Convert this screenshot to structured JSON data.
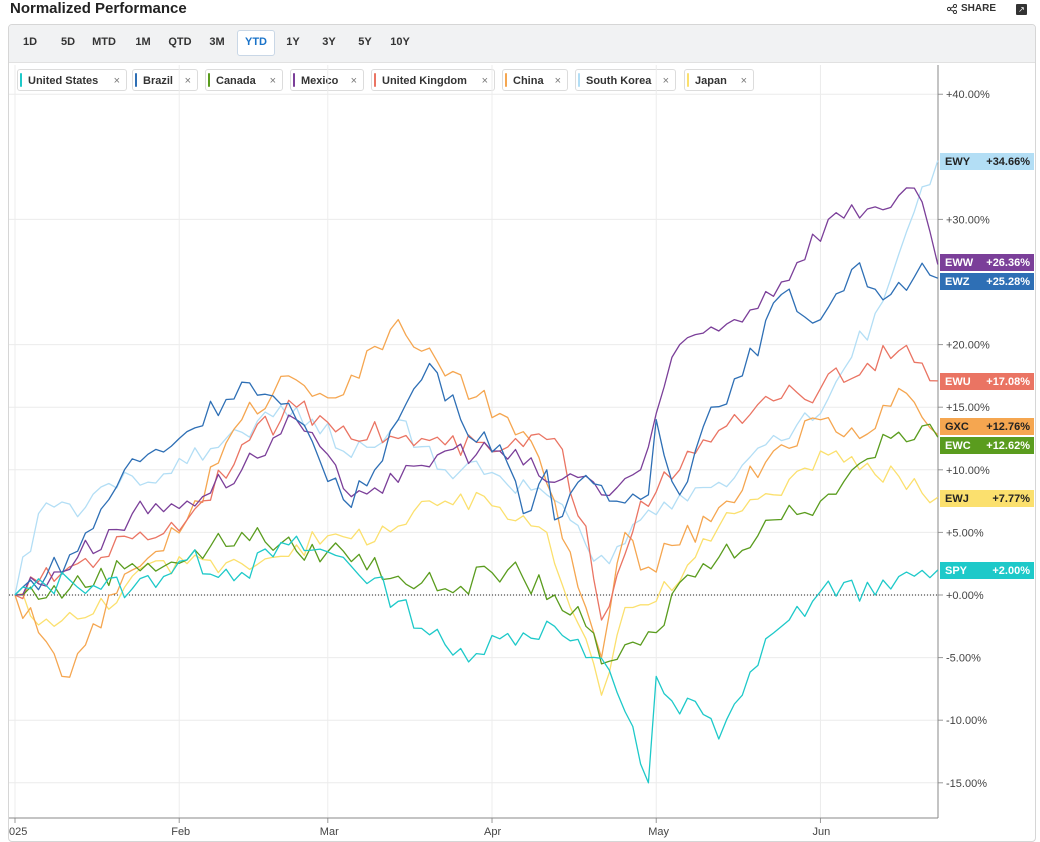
{
  "header": {
    "title": "Normalized Performance",
    "share_label": "SHARE"
  },
  "timeframes": [
    "1D",
    "5D",
    "MTD",
    "1M",
    "QTD",
    "3M",
    "YTD",
    "1Y",
    "3Y",
    "5Y",
    "10Y"
  ],
  "active_timeframe": "YTD",
  "chart_data": {
    "type": "line",
    "x_ticks": [
      "025",
      "Feb",
      "Mar",
      "Apr",
      "May",
      "Jun"
    ],
    "y_ticks": [
      "+40.00%",
      "+30.00%",
      "+20.00%",
      "+15.00%",
      "+10.00%",
      "+5.00%",
      "+0.00%",
      "-5.00%",
      "-10.00%",
      "-15.00%"
    ],
    "ylim": [
      -17.5,
      42.5
    ],
    "days": 119,
    "series": [
      {
        "name": "United States",
        "ticker": "SPY",
        "color": "#1ec9c9",
        "last_label": "+2.00%",
        "anchors": [
          [
            0,
            0
          ],
          [
            7,
            1.2
          ],
          [
            15,
            0.5
          ],
          [
            22,
            2.8
          ],
          [
            29,
            1.8
          ],
          [
            35,
            4.0
          ],
          [
            42,
            3.0
          ],
          [
            49,
            -0.5
          ],
          [
            56,
            -4.8
          ],
          [
            62,
            -3.5
          ],
          [
            69,
            -2.5
          ],
          [
            73,
            -5.0
          ],
          [
            76,
            -6.0
          ],
          [
            79,
            -10.5
          ],
          [
            80,
            -13.5
          ],
          [
            81,
            -15.0
          ],
          [
            82,
            -6.5
          ],
          [
            85,
            -9.5
          ],
          [
            87,
            -8.5
          ],
          [
            90,
            -11.5
          ],
          [
            93,
            -8.0
          ],
          [
            96,
            -3.5
          ],
          [
            99,
            -2.0
          ],
          [
            102,
            -0.5
          ],
          [
            106,
            1.0
          ],
          [
            110,
            0.0
          ],
          [
            115,
            1.5
          ],
          [
            118,
            2.0
          ]
        ]
      },
      {
        "name": "Brazil",
        "ticker": "EWZ",
        "color": "#2e6fb5",
        "last_label": "+25.28%",
        "anchors": [
          [
            0,
            0
          ],
          [
            8,
            3.5
          ],
          [
            14,
            10.0
          ],
          [
            21,
            12.5
          ],
          [
            29,
            17.0
          ],
          [
            36,
            14.0
          ],
          [
            43,
            7.0
          ],
          [
            49,
            14.0
          ],
          [
            53,
            18.5
          ],
          [
            57,
            14.0
          ],
          [
            62,
            12.0
          ],
          [
            65,
            6.5
          ],
          [
            68,
            10.0
          ],
          [
            69,
            6.0
          ],
          [
            72,
            9.0
          ],
          [
            76,
            7.5
          ],
          [
            81,
            8.0
          ],
          [
            82,
            14.0
          ],
          [
            85,
            8.0
          ],
          [
            89,
            15.0
          ],
          [
            93,
            17.5
          ],
          [
            98,
            24.0
          ],
          [
            103,
            22.0
          ],
          [
            107,
            26.0
          ],
          [
            112,
            24.0
          ],
          [
            116,
            26.5
          ],
          [
            118,
            25.3
          ]
        ]
      },
      {
        "name": "Canada",
        "ticker": "EWC",
        "color": "#5a9c1e",
        "last_label": "+12.62%",
        "anchors": [
          [
            0,
            0
          ],
          [
            7,
            0.5
          ],
          [
            15,
            2.5
          ],
          [
            22,
            2.8
          ],
          [
            29,
            5.0
          ],
          [
            36,
            3.5
          ],
          [
            42,
            3.5
          ],
          [
            49,
            1.5
          ],
          [
            55,
            0.5
          ],
          [
            63,
            2.0
          ],
          [
            69,
            0.0
          ],
          [
            73,
            -2.5
          ],
          [
            75,
            -5.5
          ],
          [
            80,
            -4.0
          ],
          [
            82,
            -3.0
          ],
          [
            85,
            1.0
          ],
          [
            90,
            3.0
          ],
          [
            97,
            6.0
          ],
          [
            103,
            7.5
          ],
          [
            108,
            10.5
          ],
          [
            113,
            13.0
          ],
          [
            116,
            13.5
          ],
          [
            118,
            12.6
          ]
        ]
      },
      {
        "name": "Mexico",
        "ticker": "EWW",
        "color": "#7b3f99",
        "last_label": "+26.36%",
        "anchors": [
          [
            0,
            0
          ],
          [
            8,
            3.0
          ],
          [
            15,
            6.5
          ],
          [
            22,
            7.5
          ],
          [
            29,
            10.0
          ],
          [
            36,
            14.0
          ],
          [
            42,
            8.5
          ],
          [
            49,
            9.0
          ],
          [
            55,
            11.5
          ],
          [
            62,
            11.5
          ],
          [
            69,
            9.0
          ],
          [
            73,
            9.5
          ],
          [
            75,
            8.0
          ],
          [
            80,
            10.0
          ],
          [
            85,
            20.0
          ],
          [
            92,
            22.0
          ],
          [
            98,
            25.0
          ],
          [
            104,
            30.0
          ],
          [
            110,
            31.0
          ],
          [
            115,
            32.5
          ],
          [
            118,
            26.4
          ]
        ]
      },
      {
        "name": "United Kingdom",
        "ticker": "EWU",
        "color": "#ea7463",
        "last_label": "+17.08%",
        "anchors": [
          [
            0,
            0
          ],
          [
            8,
            2.5
          ],
          [
            15,
            4.5
          ],
          [
            22,
            6.0
          ],
          [
            29,
            12.0
          ],
          [
            36,
            15.0
          ],
          [
            42,
            13.5
          ],
          [
            49,
            12.5
          ],
          [
            55,
            12.0
          ],
          [
            62,
            11.5
          ],
          [
            69,
            12.5
          ],
          [
            73,
            5.5
          ],
          [
            75,
            -2.0
          ],
          [
            80,
            7.5
          ],
          [
            85,
            10.0
          ],
          [
            91,
            13.5
          ],
          [
            97,
            15.5
          ],
          [
            103,
            16.5
          ],
          [
            109,
            18.5
          ],
          [
            113,
            19.5
          ],
          [
            118,
            17.1
          ]
        ]
      },
      {
        "name": "China",
        "ticker": "GXC",
        "color": "#f5a650",
        "last_label": "+12.76%",
        "anchors": [
          [
            0,
            0
          ],
          [
            3,
            -3.0
          ],
          [
            6,
            -6.5
          ],
          [
            9,
            -4.0
          ],
          [
            15,
            2.0
          ],
          [
            22,
            6.0
          ],
          [
            29,
            14.0
          ],
          [
            35,
            17.5
          ],
          [
            42,
            16.0
          ],
          [
            49,
            22.0
          ],
          [
            55,
            17.5
          ],
          [
            62,
            14.5
          ],
          [
            67,
            11.0
          ],
          [
            73,
            -1.0
          ],
          [
            75,
            -5.0
          ],
          [
            78,
            5.0
          ],
          [
            80,
            2.0
          ],
          [
            85,
            4.0
          ],
          [
            91,
            7.5
          ],
          [
            97,
            11.5
          ],
          [
            103,
            14.0
          ],
          [
            108,
            12.5
          ],
          [
            113,
            16.5
          ],
          [
            118,
            12.8
          ]
        ]
      },
      {
        "name": "South Korea",
        "ticker": "EWY",
        "color": "#b3def5",
        "last_label": "+34.66%",
        "anchors": [
          [
            0,
            0
          ],
          [
            3,
            6.5
          ],
          [
            9,
            7.0
          ],
          [
            15,
            9.5
          ],
          [
            22,
            10.5
          ],
          [
            29,
            13.0
          ],
          [
            36,
            15.0
          ],
          [
            43,
            11.0
          ],
          [
            49,
            14.0
          ],
          [
            55,
            10.0
          ],
          [
            62,
            9.5
          ],
          [
            68,
            8.0
          ],
          [
            73,
            4.0
          ],
          [
            76,
            2.5
          ],
          [
            80,
            6.0
          ],
          [
            85,
            8.0
          ],
          [
            90,
            9.0
          ],
          [
            96,
            12.0
          ],
          [
            103,
            14.5
          ],
          [
            107,
            19.0
          ],
          [
            110,
            22.5
          ],
          [
            114,
            29.0
          ],
          [
            118,
            34.7
          ]
        ]
      },
      {
        "name": "Japan",
        "ticker": "EWJ",
        "color": "#fbe06e",
        "last_label": "+7.77%",
        "anchors": [
          [
            0,
            0
          ],
          [
            5,
            -2.5
          ],
          [
            10,
            -1.5
          ],
          [
            15,
            1.5
          ],
          [
            22,
            2.5
          ],
          [
            29,
            2.5
          ],
          [
            36,
            4.0
          ],
          [
            43,
            4.5
          ],
          [
            49,
            5.5
          ],
          [
            55,
            7.5
          ],
          [
            62,
            7.0
          ],
          [
            68,
            5.0
          ],
          [
            73,
            -3.5
          ],
          [
            75,
            -8.0
          ],
          [
            78,
            -1.0
          ],
          [
            82,
            -0.5
          ],
          [
            87,
            3.0
          ],
          [
            92,
            6.5
          ],
          [
            97,
            8.0
          ],
          [
            103,
            11.5
          ],
          [
            108,
            10.0
          ],
          [
            113,
            9.5
          ],
          [
            118,
            7.8
          ]
        ]
      }
    ]
  }
}
